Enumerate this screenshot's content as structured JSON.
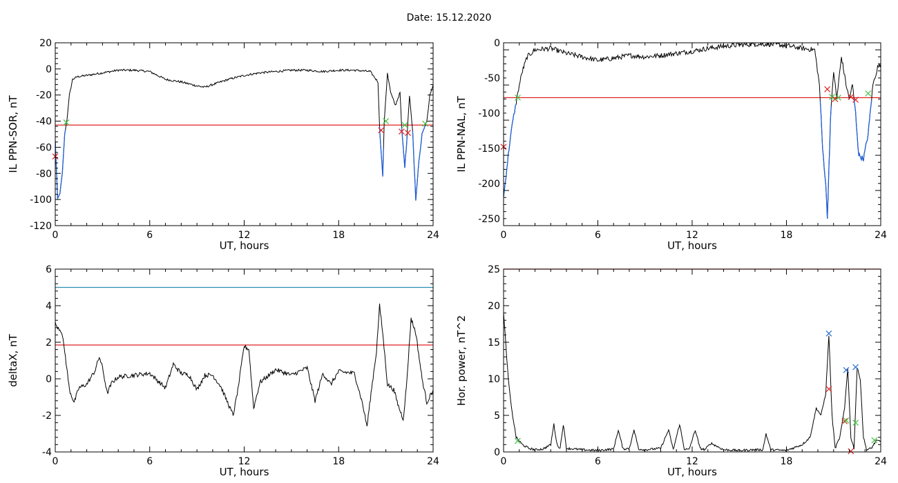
{
  "title": "Date:  15.12.2020",
  "colors": {
    "trace": "#000000",
    "highlight": "#1f5fd6",
    "threshold_red": "#e02020",
    "threshold_teal": "#2a8fb0",
    "marker_red": "#e02020",
    "marker_green": "#40c040",
    "marker_blue": "#2a70d0"
  },
  "chart_data": [
    {
      "id": "p1",
      "type": "line",
      "ylabel": "IL PPN-SOR, nT",
      "xlabel": "UT, hours",
      "xlim": [
        0,
        24
      ],
      "ylim": [
        -120,
        20
      ],
      "xticks": [
        0,
        6,
        12,
        18,
        24
      ],
      "yticks": [
        20,
        0,
        -20,
        -40,
        -60,
        -80,
        -100,
        -120
      ],
      "ytick_labels": [
        "20",
        "0",
        "-20",
        "-40",
        "-60",
        "-80",
        "-100",
        "-120"
      ],
      "thresholds": [
        {
          "y": -43,
          "color": "red"
        }
      ],
      "highlight_below": -43,
      "noise": 0.8,
      "series": [
        {
          "x": [
            0,
            0.15,
            0.3,
            0.45,
            0.6,
            0.75,
            0.9,
            1.1,
            1.4,
            2,
            3,
            4,
            4.5,
            5,
            6,
            7,
            8,
            9,
            9.5,
            10,
            11,
            12,
            13,
            14,
            15,
            16,
            17,
            18,
            19,
            20,
            20.5,
            20.6,
            20.8,
            20.9,
            21.1,
            21.3,
            21.6,
            21.9,
            22,
            22.2,
            22.3,
            22.5,
            22.7,
            22.9,
            23.1,
            23.3,
            23.6,
            23.8,
            24
          ],
          "y": [
            -55,
            -100,
            -95,
            -80,
            -50,
            -38,
            -20,
            -8,
            -6,
            -5,
            -3,
            -1,
            -1,
            -1,
            -2,
            -8,
            -10,
            -13,
            -14,
            -12,
            -8,
            -5,
            -3,
            -2,
            -1,
            -1,
            -2,
            -1,
            -1,
            -2,
            -10,
            -45,
            -82,
            -40,
            -3,
            -18,
            -28,
            -18,
            -45,
            -75,
            -60,
            -20,
            -48,
            -100,
            -70,
            -50,
            -40,
            -20,
            -12
          ]
        }
      ],
      "markers": {
        "red": [
          [
            0,
            -67
          ],
          [
            20.7,
            -47
          ],
          [
            22,
            -48
          ],
          [
            22.4,
            -49
          ]
        ],
        "green": [
          [
            0.7,
            -41
          ],
          [
            21,
            -40
          ],
          [
            22.2,
            -43
          ],
          [
            23.5,
            -42
          ]
        ]
      }
    },
    {
      "id": "p2",
      "type": "line",
      "ylabel": "IL PPN-NAL, nT",
      "xlabel": "UT, hours",
      "xlim": [
        0,
        24
      ],
      "ylim": [
        -260,
        0
      ],
      "xticks": [
        0,
        6,
        12,
        18,
        24
      ],
      "yticks": [
        0,
        -50,
        -100,
        -150,
        -200,
        -250
      ],
      "ytick_labels": [
        "0",
        "-50",
        "-100",
        "-150",
        "-200",
        "-250"
      ],
      "thresholds": [
        {
          "y": -78,
          "color": "red"
        }
      ],
      "highlight_below": -78,
      "noise": 3.5,
      "series": [
        {
          "x": [
            0,
            0.2,
            0.4,
            0.6,
            0.8,
            1,
            1.2,
            1.5,
            2,
            3,
            4,
            5,
            6,
            7,
            8,
            9,
            10,
            11,
            12,
            13,
            14,
            15,
            16,
            17,
            18,
            19,
            19.8,
            20.1,
            20.3,
            20.5,
            20.6,
            20.8,
            21,
            21.2,
            21.5,
            21.8,
            22,
            22.2,
            22.4,
            22.6,
            22.9,
            23.2,
            23.5,
            23.8,
            24
          ],
          "y": [
            -220,
            -180,
            -140,
            -110,
            -85,
            -60,
            -40,
            -20,
            -10,
            -8,
            -15,
            -20,
            -25,
            -22,
            -18,
            -20,
            -18,
            -15,
            -12,
            -8,
            -5,
            -3,
            -2,
            -2,
            -4,
            -8,
            -10,
            -60,
            -150,
            -200,
            -250,
            -110,
            -40,
            -80,
            -20,
            -60,
            -80,
            -60,
            -100,
            -160,
            -165,
            -130,
            -60,
            -35,
            -30
          ]
        }
      ],
      "markers": {
        "red": [
          [
            0,
            -148
          ],
          [
            20.6,
            -66
          ],
          [
            21.1,
            -80
          ],
          [
            22.1,
            -77
          ],
          [
            22.4,
            -81
          ]
        ],
        "green": [
          [
            0.9,
            -78
          ],
          [
            20.9,
            -77
          ],
          [
            21.3,
            -78
          ],
          [
            23.2,
            -72
          ]
        ]
      }
    },
    {
      "id": "p3",
      "type": "line",
      "ylabel": "deltaX, nT",
      "xlabel": "UT, hours",
      "xlim": [
        0,
        24
      ],
      "ylim": [
        -4,
        6
      ],
      "xticks": [
        0,
        6,
        12,
        18,
        24
      ],
      "yticks": [
        6,
        4,
        2,
        0,
        -2,
        -4
      ],
      "ytick_labels": [
        "6",
        "4",
        "2",
        "0",
        "-2",
        "-4"
      ],
      "thresholds": [
        {
          "y": 5,
          "color": "teal"
        },
        {
          "y": 1.85,
          "color": "red"
        }
      ],
      "highlight_below": null,
      "noise": 0.12,
      "series": [
        {
          "x": [
            0,
            0.2,
            0.4,
            0.6,
            0.9,
            1.2,
            1.5,
            2,
            2.5,
            2.8,
            3,
            3.3,
            3.6,
            4,
            5,
            6,
            7,
            7.5,
            8,
            8.5,
            9,
            9.5,
            10,
            10.5,
            11,
            11.3,
            11.6,
            12,
            12.3,
            12.6,
            13,
            14,
            15,
            16,
            16.5,
            17,
            17.5,
            18,
            19,
            19.5,
            19.8,
            20.1,
            20.4,
            20.6,
            20.8,
            21.1,
            21.5,
            21.8,
            22.1,
            22.3,
            22.6,
            22.9,
            23.3,
            23.6,
            24
          ],
          "y": [
            3,
            2.8,
            2.6,
            1.5,
            -0.6,
            -1.3,
            -0.5,
            -0.3,
            0.4,
            1.2,
            0.6,
            -0.8,
            -0.2,
            0.1,
            0.2,
            0.3,
            -0.5,
            0.8,
            0.3,
            0.2,
            -0.6,
            0.2,
            0.2,
            -0.4,
            -1.4,
            -2,
            -0.6,
            1.8,
            1.6,
            -1.6,
            -0.2,
            0.5,
            0.2,
            0.6,
            -1.2,
            0.3,
            -0.3,
            0.4,
            0.3,
            -1.3,
            -2.6,
            -0.5,
            1.5,
            4,
            2.5,
            -0.3,
            -0.6,
            -1.5,
            -2.2,
            -0.5,
            3.3,
            2.5,
            0,
            -1.3,
            -0.6
          ]
        }
      ],
      "markers": {
        "red": [],
        "green": []
      }
    },
    {
      "id": "p4",
      "type": "line",
      "ylabel": "Hor. power, nT^2",
      "xlabel": "UT, hours",
      "xlim": [
        0,
        24
      ],
      "ylim": [
        0,
        25
      ],
      "xticks": [
        0,
        6,
        12,
        18,
        24
      ],
      "yticks": [
        25,
        20,
        15,
        10,
        5,
        0
      ],
      "ytick_labels": [
        "25",
        "20",
        "15",
        "10",
        "5",
        "0"
      ],
      "thresholds": [
        {
          "y": 25,
          "color": "red"
        }
      ],
      "highlight_below": null,
      "noise": 0.15,
      "series": [
        {
          "x": [
            0,
            0.1,
            0.3,
            0.5,
            0.8,
            1.2,
            1.6,
            2,
            2.5,
            3,
            3.2,
            3.4,
            3.6,
            3.8,
            4,
            5,
            6,
            7,
            7.3,
            7.6,
            8,
            8.3,
            8.6,
            9,
            10,
            10.5,
            10.8,
            11.2,
            11.5,
            11.8,
            12.2,
            12.5,
            12.8,
            13.2,
            14,
            15,
            16,
            16.5,
            16.7,
            17,
            18,
            19,
            19.5,
            19.9,
            20.2,
            20.5,
            20.7,
            20.9,
            21.1,
            21.4,
            21.7,
            21.9,
            22.1,
            22.3,
            22.5,
            22.7,
            22.9,
            23.1,
            23.4,
            23.7,
            24
          ],
          "y": [
            19,
            16,
            10,
            6,
            2,
            1,
            0.5,
            0.3,
            0.4,
            1,
            3.8,
            1,
            0.5,
            3.8,
            0.5,
            0.3,
            0.2,
            0.4,
            3,
            0.4,
            0.5,
            3,
            0.4,
            0.3,
            0.5,
            3,
            0.3,
            3.8,
            0.4,
            0.3,
            3,
            0.5,
            0.3,
            1.2,
            0.3,
            0.2,
            0.3,
            0.3,
            2.5,
            0.3,
            0.2,
            1,
            2,
            6,
            5,
            8,
            16,
            5,
            0.5,
            2,
            6,
            11.5,
            2,
            0.5,
            11.5,
            10,
            2,
            0.3,
            0.5,
            1.5,
            1.5
          ]
        }
      ],
      "markers": {
        "red": [
          [
            20.7,
            8.6
          ],
          [
            21.7,
            4.2
          ],
          [
            22.1,
            0.1
          ]
        ],
        "green": [
          [
            0.9,
            1.5
          ],
          [
            21.8,
            4.3
          ],
          [
            22.4,
            4
          ],
          [
            23.6,
            1.6
          ]
        ],
        "blue": [
          [
            20.7,
            16.2
          ],
          [
            21.8,
            11.2
          ],
          [
            22.4,
            11.6
          ]
        ]
      }
    }
  ]
}
